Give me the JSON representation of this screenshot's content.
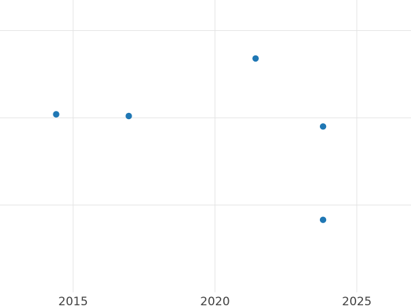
{
  "chart_data": {
    "type": "scatter",
    "title": "",
    "xlabel": "",
    "ylabel": "",
    "grid": true,
    "legend": false,
    "background_color": "#ffffff",
    "gridline_color": "#e3e3e3",
    "point_color": "#1f77b4",
    "tick_label_color": "#414141",
    "point_radius_px": 4.7,
    "tick_font_size_px": 17,
    "x_axis": {
      "tick_labels": [
        "2015",
        "2020",
        "2025"
      ],
      "tick_values": [
        2015,
        2020,
        2025
      ],
      "range": [
        2012.42,
        2026.91
      ]
    },
    "y_axis": {
      "labels_visible": false,
      "gridline_values": [
        1,
        2,
        3
      ],
      "plot_bottom_value": 0,
      "range": [
        -0.18,
        3.35
      ],
      "note": "y axis unlabeled in image; values estimated in gridline units"
    },
    "points": [
      {
        "x": 2014.4,
        "y": 2.04
      },
      {
        "x": 2016.96,
        "y": 2.02
      },
      {
        "x": 2021.43,
        "y": 2.68
      },
      {
        "x": 2023.81,
        "y": 1.9
      },
      {
        "x": 2023.81,
        "y": 0.83
      }
    ]
  }
}
